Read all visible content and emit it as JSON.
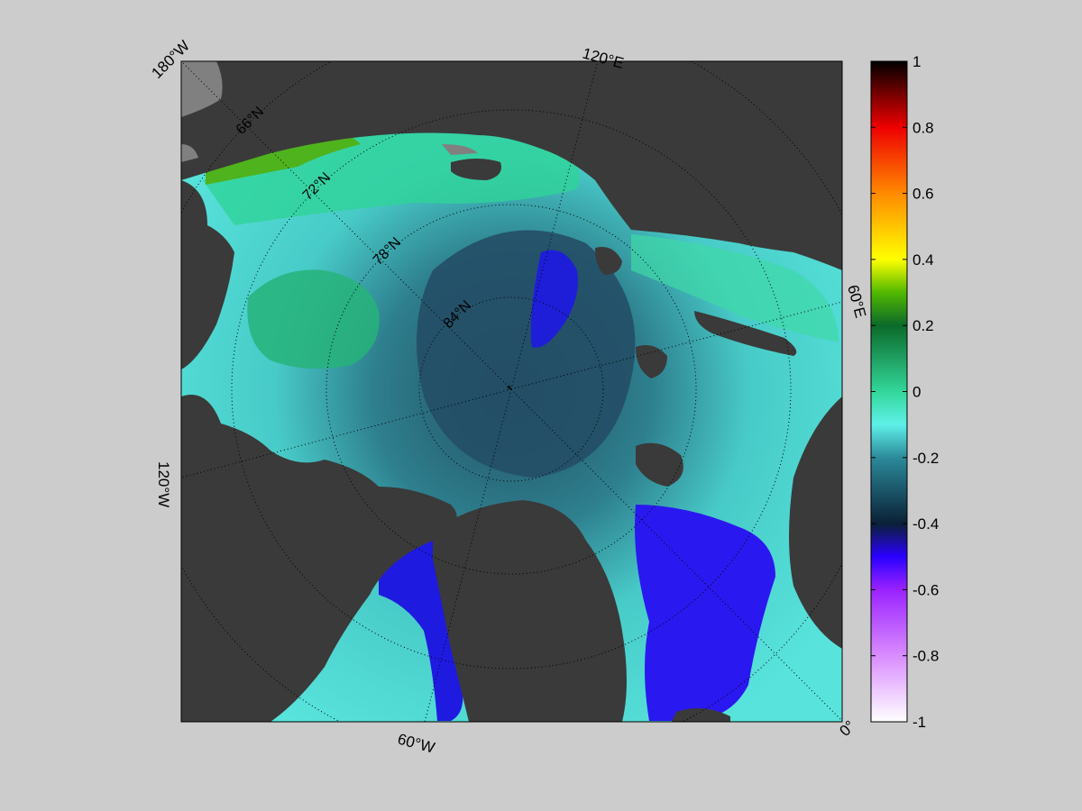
{
  "map": {
    "projection": "north-polar-stereographic",
    "lon_labels": {
      "w180": "180°W",
      "e120": "120°E",
      "e60": "60°E",
      "w120": "120°W",
      "w60": "60°W",
      "zero": "0°"
    },
    "lat_labels": [
      "66°N",
      "72°N",
      "78°N",
      "84°N"
    ],
    "colors": {
      "background": "#cccccc",
      "land": "#3a3a3a",
      "ice_shelf": "#808080",
      "graticule": "#000000"
    }
  },
  "colorbar": {
    "range": [
      -1,
      1
    ],
    "ticks": [
      "1",
      "0.8",
      "0.6",
      "0.4",
      "0.2",
      "0",
      "-0.2",
      "-0.4",
      "-0.6",
      "-0.8",
      "-1"
    ],
    "colormap": [
      "#ffffff",
      "#cc66ff",
      "#8800ff",
      "#0000ff",
      "#1a3a5a",
      "#2a8a9a",
      "#5ef0e8",
      "#2ecc8a",
      "#0a6a2a",
      "#66cc00",
      "#ffff00",
      "#ff8800",
      "#ff0000",
      "#880000",
      "#000000"
    ]
  }
}
